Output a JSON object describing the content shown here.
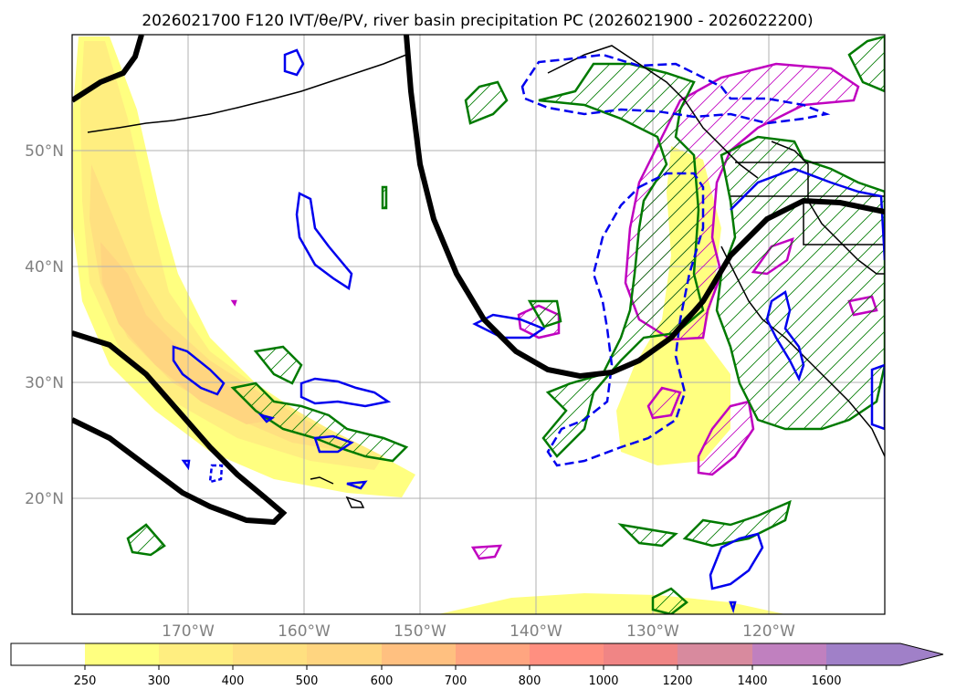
{
  "title": "2026021700 F120 IVT/θe/PV, river basin precipitation PC (2026021900 - 2026022200)",
  "map": {
    "lat_labels": [
      "50°N",
      "40°N",
      "30°N",
      "20°N"
    ],
    "lon_labels": [
      "170°W",
      "160°W",
      "150°W",
      "140°W",
      "130°W",
      "120°W"
    ],
    "lon_range": [
      -180,
      -110
    ],
    "lat_range": [
      10,
      60
    ],
    "layers": [
      {
        "name": "IVT shading",
        "style": "filled contours"
      },
      {
        "name": "theta-e contour",
        "style": "thick black line"
      },
      {
        "name": "PV contours",
        "style": "blue solid/dashed lines"
      },
      {
        "name": "precipitation PC positive",
        "style": "green hatched"
      },
      {
        "name": "precipitation PC magenta",
        "style": "magenta hatched"
      }
    ]
  },
  "colorbar": {
    "labels": [
      "250",
      "300",
      "400",
      "500",
      "600",
      "700",
      "800",
      "1000",
      "1200",
      "1400",
      "1600"
    ],
    "colors": [
      "#ffff80",
      "#ffee80",
      "#ffe080",
      "#ffd580",
      "#ffc080",
      "#ffa580",
      "#ff8f80",
      "#f08585",
      "#d88a9e",
      "#c080bf",
      "#a080c8"
    ],
    "extend_color": "#a080c8"
  },
  "palette": {
    "ivt1": "#ffff80",
    "ivt2": "#ffee80",
    "ivt3": "#ffd580",
    "ivt4": "#ffc480",
    "theta": "#000000",
    "pv": "#0000ee",
    "green": "#007a00",
    "magenta": "#c000c0"
  }
}
